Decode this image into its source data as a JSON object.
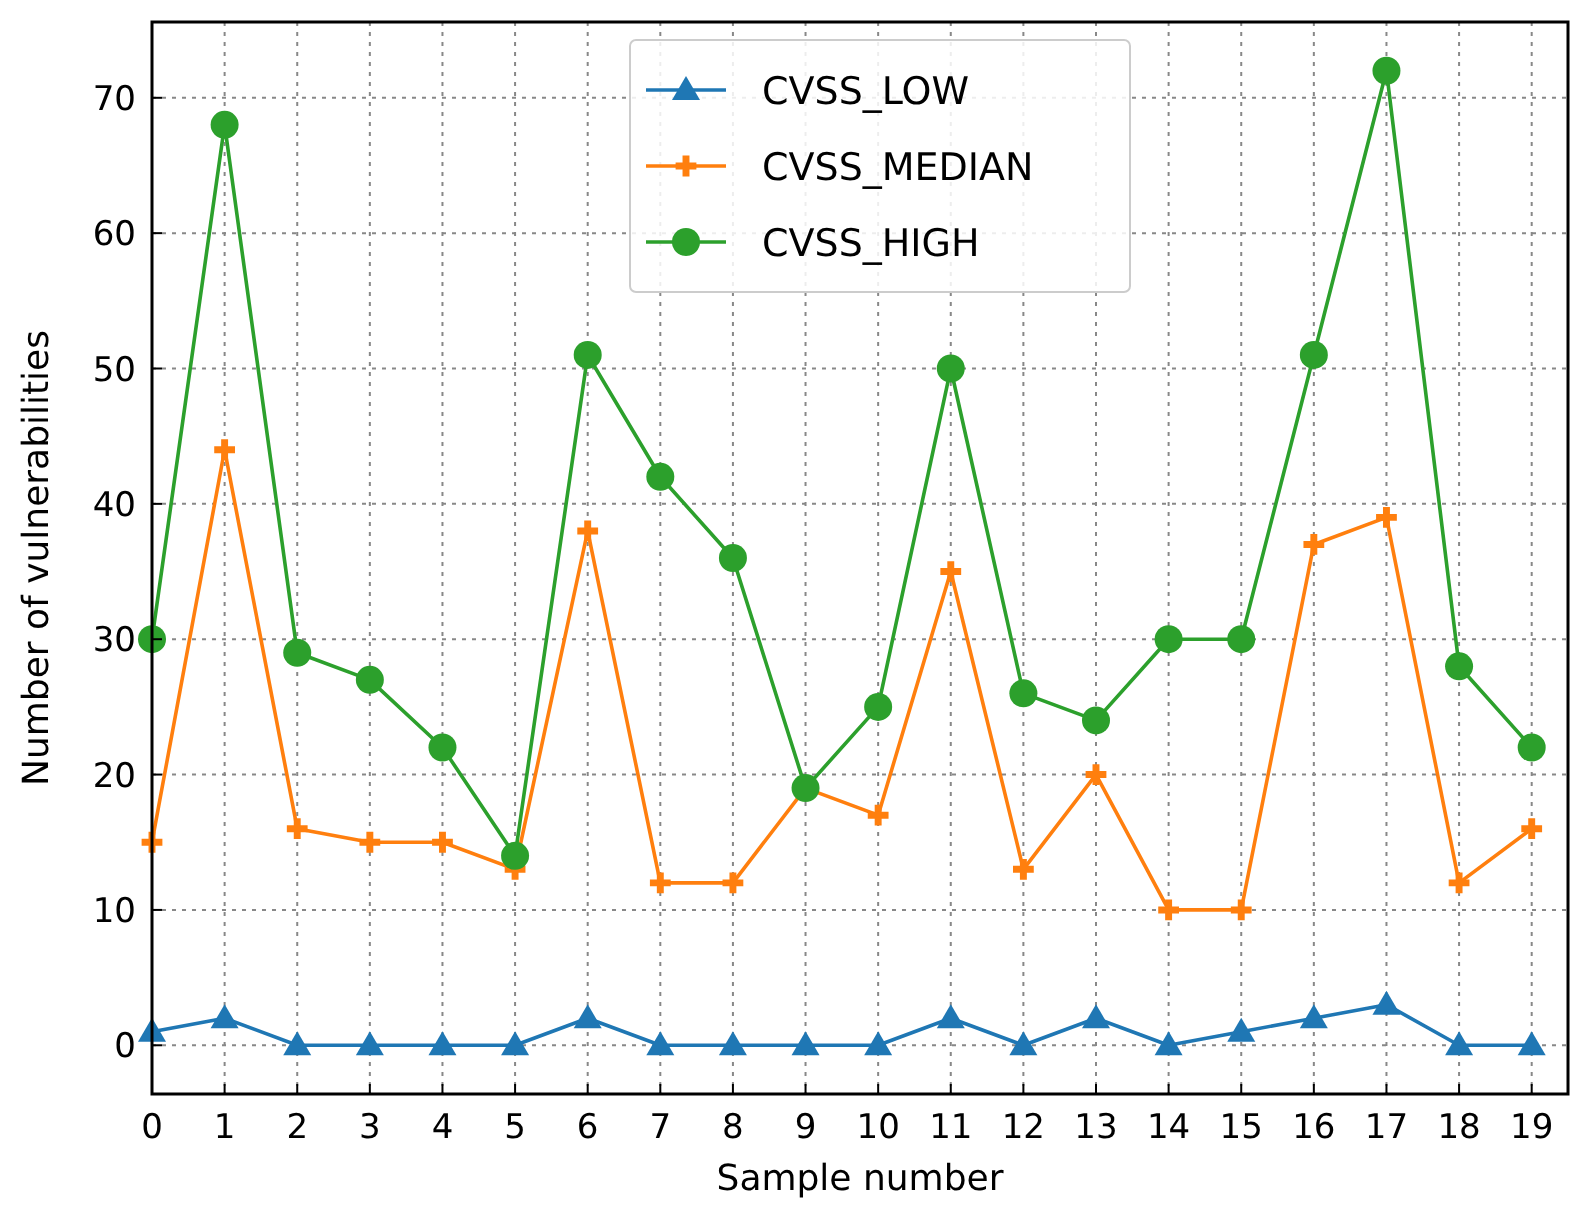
{
  "chart_data": {
    "type": "line",
    "xlabel": "Sample number",
    "ylabel": "Number of vulnerabilities",
    "x": [
      0,
      1,
      2,
      3,
      4,
      5,
      6,
      7,
      8,
      9,
      10,
      11,
      12,
      13,
      14,
      15,
      16,
      17,
      18,
      19
    ],
    "xlim": [
      0,
      19.5
    ],
    "ylim": [
      -3.6,
      75.6
    ],
    "xticks": [
      0,
      1,
      2,
      3,
      4,
      5,
      6,
      7,
      8,
      9,
      10,
      11,
      12,
      13,
      14,
      15,
      16,
      17,
      18,
      19
    ],
    "yticks": [
      0,
      10,
      20,
      30,
      40,
      50,
      60,
      70
    ],
    "grid": true,
    "legend": "top",
    "line_style": "solid",
    "series": [
      {
        "name": "CVSS_LOW",
        "color": "#1f77b4",
        "marker": "triangle",
        "values": [
          1,
          2,
          0,
          0,
          0,
          0,
          2,
          0,
          0,
          0,
          0,
          2,
          0,
          2,
          0,
          1,
          2,
          3,
          0,
          0
        ]
      },
      {
        "name": "CVSS_MEDIAN",
        "color": "#ff7f0e",
        "marker": "cross",
        "values": [
          15,
          44,
          16,
          15,
          15,
          13,
          38,
          12,
          12,
          19,
          17,
          35,
          13,
          20,
          10,
          10,
          37,
          39,
          12,
          16
        ]
      },
      {
        "name": "CVSS_HIGH",
        "color": "#2ca02c",
        "marker": "circle",
        "values": [
          30,
          68,
          29,
          27,
          22,
          14,
          51,
          42,
          36,
          19,
          25,
          50,
          26,
          24,
          30,
          30,
          51,
          72,
          28,
          22
        ]
      }
    ]
  }
}
